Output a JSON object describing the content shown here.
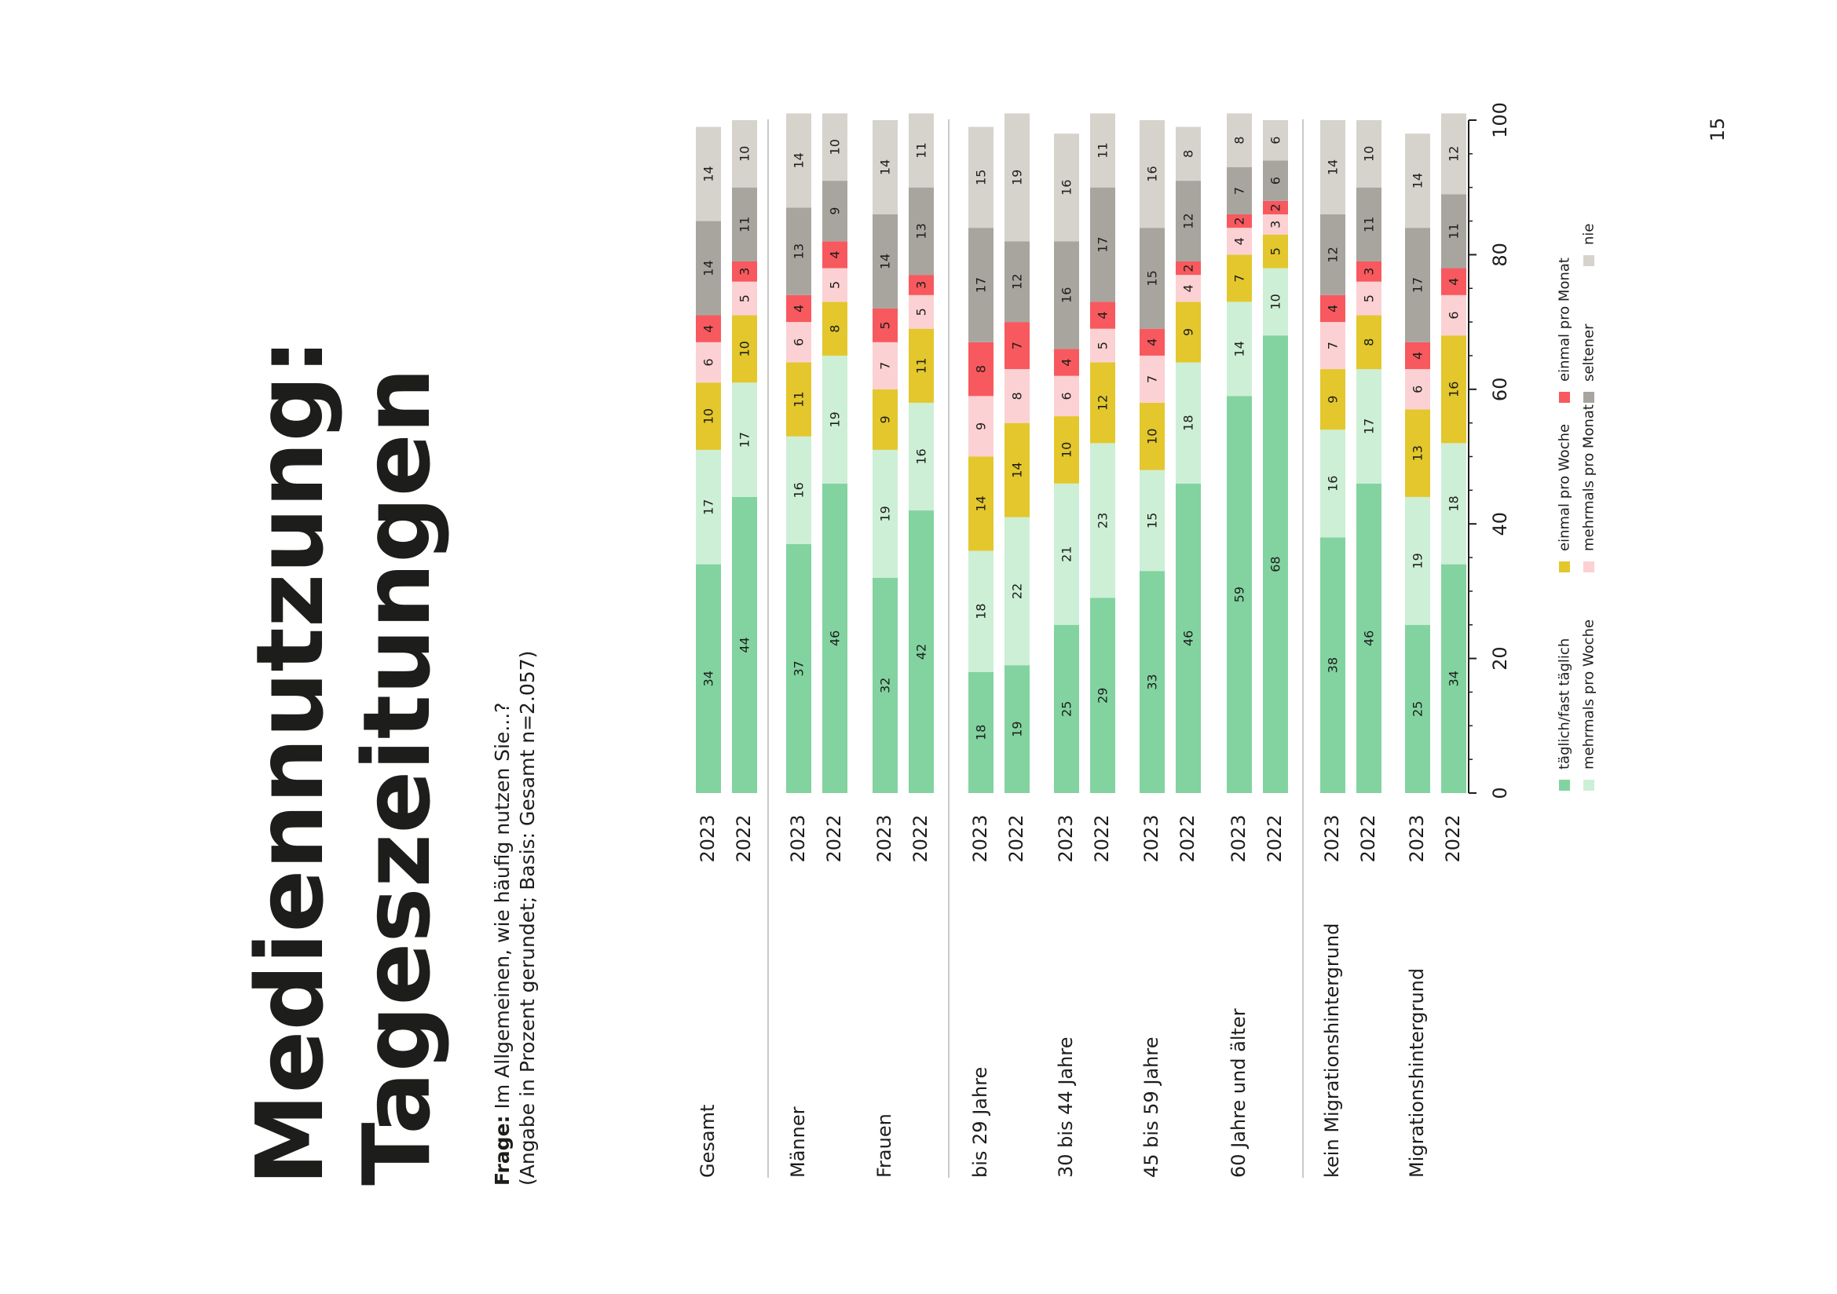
{
  "page": {
    "number": "15"
  },
  "title": {
    "line1": "Mediennutzung:",
    "line2": "Tageszeitungen"
  },
  "question": {
    "label": "Frage:",
    "text": " Im Allgemeinen, wie häufig nutzen Sie...?",
    "note": "(Angabe in Prozent gerundet; Basis: Gesamt n=2.057)"
  },
  "colors": {
    "taeglich": "#82d3a0",
    "mehrmals_woche": "#cdefd6",
    "einmal_woche": "#e3c72c",
    "mehrmals_monat": "#fbd1d3",
    "einmal_monat": "#f7595e",
    "seltener": "#a8a59f",
    "nie": "#d6d3cd"
  },
  "chart_data": {
    "type": "bar",
    "orientation": "horizontal stacked, page rotated 90°",
    "axis": {
      "range": [
        0,
        100
      ],
      "ticks": [
        "0",
        "20",
        "40",
        "60",
        "80",
        "100"
      ]
    },
    "series": [
      {
        "key": "taeglich",
        "name": "täglich/fast täglich"
      },
      {
        "key": "mehrmals_woche",
        "name": "mehrmals pro Woche"
      },
      {
        "key": "einmal_woche",
        "name": "einmal pro Woche"
      },
      {
        "key": "mehrmals_monat",
        "name": "mehrmals pro Monat"
      },
      {
        "key": "einmal_monat",
        "name": "einmal pro Monat"
      },
      {
        "key": "seltener",
        "name": "seltener"
      },
      {
        "key": "nie",
        "name": "nie"
      }
    ],
    "categories": [
      {
        "label": "Gesamt",
        "rows": [
          {
            "year": "2023",
            "values": [
              34,
              17,
              10,
              6,
              4,
              14,
              14
            ]
          },
          {
            "year": "2022",
            "values": [
              44,
              17,
              10,
              5,
              3,
              11,
              10
            ]
          }
        ]
      },
      {
        "label": "Männer",
        "rows": [
          {
            "year": "2023",
            "values": [
              37,
              16,
              11,
              6,
              4,
              13,
              14
            ]
          },
          {
            "year": "2022",
            "values": [
              46,
              19,
              8,
              5,
              4,
              9,
              10
            ]
          }
        ]
      },
      {
        "label": "Frauen",
        "rows": [
          {
            "year": "2023",
            "values": [
              32,
              19,
              9,
              7,
              5,
              14,
              14
            ]
          },
          {
            "year": "2022",
            "values": [
              42,
              16,
              11,
              5,
              3,
              13,
              11
            ]
          }
        ]
      },
      {
        "label": "bis 29 Jahre",
        "rows": [
          {
            "year": "2023",
            "values": [
              18,
              18,
              14,
              9,
              8,
              17,
              15
            ]
          },
          {
            "year": "2022",
            "values": [
              19,
              22,
              14,
              8,
              7,
              12,
              19
            ]
          }
        ]
      },
      {
        "label": "30 bis 44 Jahre",
        "rows": [
          {
            "year": "2023",
            "values": [
              25,
              21,
              10,
              6,
              4,
              16,
              16
            ]
          },
          {
            "year": "2022",
            "values": [
              29,
              23,
              12,
              5,
              4,
              17,
              11
            ]
          }
        ]
      },
      {
        "label": "45 bis 59 Jahre",
        "rows": [
          {
            "year": "2023",
            "values": [
              33,
              15,
              10,
              7,
              4,
              15,
              16
            ]
          },
          {
            "year": "2022",
            "values": [
              46,
              18,
              9,
              4,
              2,
              12,
              8
            ]
          }
        ]
      },
      {
        "label": "60 Jahre und älter",
        "rows": [
          {
            "year": "2023",
            "values": [
              59,
              14,
              7,
              4,
              2,
              7,
              8
            ]
          },
          {
            "year": "2022",
            "values": [
              68,
              10,
              5,
              3,
              2,
              6,
              6
            ]
          }
        ]
      },
      {
        "label": "kein Migrationshintergrund",
        "rows": [
          {
            "year": "2023",
            "values": [
              38,
              16,
              9,
              7,
              4,
              12,
              14
            ]
          },
          {
            "year": "2022",
            "values": [
              46,
              17,
              8,
              5,
              3,
              11,
              10
            ]
          }
        ]
      },
      {
        "label": "Migrationshintergrund",
        "rows": [
          {
            "year": "2023",
            "values": [
              25,
              19,
              13,
              6,
              4,
              17,
              14
            ]
          },
          {
            "year": "2022",
            "values": [
              34,
              18,
              16,
              6,
              4,
              11,
              12
            ]
          }
        ]
      }
    ],
    "legend": [
      "täglich/fast täglich",
      "mehrmals pro Woche",
      "einmal pro Woche",
      "mehrmals pro Monat",
      "einmal pro Monat",
      "seltener",
      "nie"
    ],
    "legend_position": "right"
  }
}
